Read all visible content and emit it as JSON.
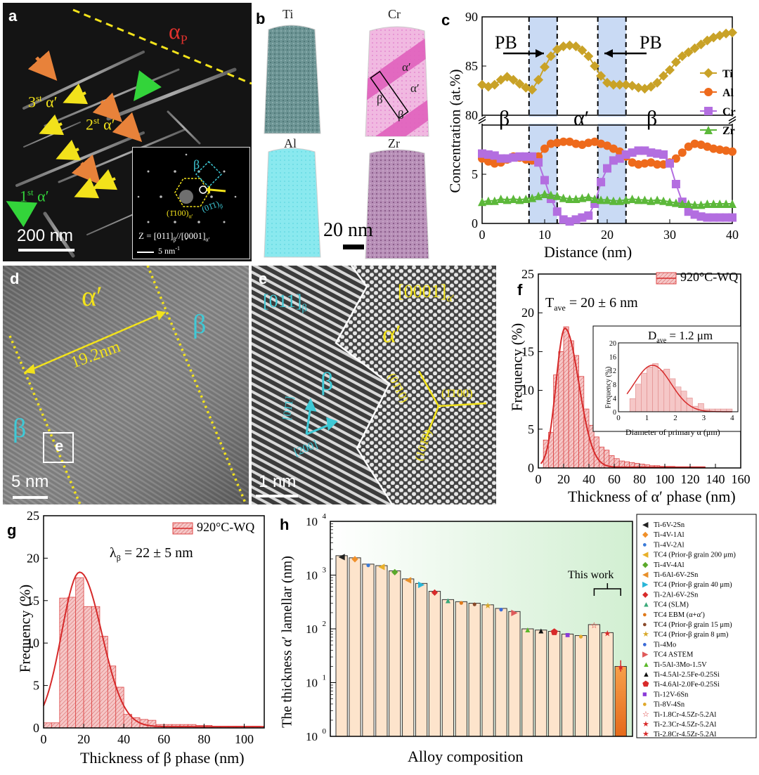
{
  "panel_a": {
    "letter": "a",
    "alpha_p": "α",
    "alpha_p_sub": "P",
    "third": "3",
    "third_sup": "st",
    "second": "2",
    "second_sup": "st",
    "first": "1",
    "first_sup": "st",
    "alpha_prime": "α′",
    "scale_bar": "200 nm",
    "inset": {
      "beta": "β",
      "hkl_beta": "(01̄1)",
      "hkl_beta_sub": "β",
      "hkl_alpha": "(1̄100)",
      "hkl_alpha_sub": "α′",
      "zone_axis": "Z = [011]",
      "zone_sub1": "β",
      "zone_mid": "//[0001]",
      "zone_sub2": "α′",
      "scale": "5 nm",
      "scale_sup": "-1"
    },
    "colors": {
      "yellow": "#f2e21b",
      "orange": "#e8823a",
      "green": "#33d43a",
      "red": "#e0322d",
      "cyan": "#3ec9d6"
    }
  },
  "panel_b": {
    "letter": "b",
    "elements": [
      "Ti",
      "Cr",
      "Al",
      "Zr"
    ],
    "alpha1": "α′",
    "alpha2": "α′",
    "beta1": "β",
    "beta2": "β",
    "scale_bar": "20 nm",
    "colors": {
      "Ti": "#5f8c8c",
      "Cr": "#e38ac9",
      "Al": "#7de3ea",
      "Zr": "#9d6d9d"
    }
  },
  "panel_c": {
    "letter": "c",
    "pb_left": "PB",
    "pb_right": "PB",
    "beta_left": "β",
    "alpha_mid": "α′",
    "beta_right": "β",
    "ylabel": "Concentration (at.%)",
    "xlabel": "Distance (nm)"
  },
  "chart_data": [
    {
      "type": "line",
      "panel": "c",
      "xlim": [
        0,
        40
      ],
      "ylim_upper": [
        80,
        90
      ],
      "ylim_lower": [
        0,
        10
      ],
      "x_ticks": [
        "0",
        "10",
        "20",
        "30",
        "40"
      ],
      "y_ticks_upper": [
        "80",
        "85",
        "90"
      ],
      "y_ticks_lower": [
        "0",
        "5"
      ],
      "shaded_x": [
        [
          7.5,
          12
        ],
        [
          18.5,
          23
        ]
      ],
      "dashed_x": [
        7.5,
        12,
        18.5,
        23
      ],
      "x": [
        0,
        1,
        2,
        3,
        4,
        5,
        6,
        7,
        8,
        9,
        10,
        11,
        12,
        13,
        14,
        15,
        16,
        17,
        18,
        19,
        20,
        21,
        22,
        23,
        24,
        25,
        26,
        27,
        28,
        29,
        30,
        31,
        32,
        33,
        34,
        35,
        36,
        37,
        38,
        39,
        40
      ],
      "series": [
        {
          "name": "Ti",
          "color": "#c9a227",
          "marker": "diamond",
          "values": [
            83.1,
            82.9,
            83.1,
            83.6,
            83.9,
            83.6,
            83.2,
            82.8,
            82.6,
            83.6,
            84.9,
            86.0,
            86.7,
            87.0,
            87.1,
            87.0,
            86.6,
            86.0,
            85.0,
            84.0,
            83.3,
            83.1,
            83.1,
            83.1,
            83.0,
            82.8,
            82.7,
            82.9,
            83.3,
            84.0,
            84.6,
            85.4,
            86.0,
            86.4,
            86.8,
            87.2,
            87.6,
            87.9,
            88.1,
            88.3,
            88.4
          ]
        },
        {
          "name": "Al",
          "color": "#ee6a1c",
          "marker": "circle",
          "values": [
            6.6,
            6.3,
            6.1,
            6.2,
            6.5,
            6.8,
            6.7,
            6.5,
            6.4,
            6.8,
            7.6,
            8.1,
            8.2,
            8.3,
            8.3,
            8.1,
            8.0,
            8.2,
            8.3,
            8.1,
            7.9,
            7.6,
            7.3,
            6.8,
            6.2,
            6.0,
            6.1,
            6.2,
            6.0,
            6.0,
            6.2,
            6.6,
            7.2,
            7.8,
            8.1,
            8.0,
            7.8,
            7.6,
            7.5,
            7.4,
            7.3
          ]
        },
        {
          "name": "Cr",
          "color": "#b36ee0",
          "marker": "square",
          "values": [
            7.1,
            7.0,
            6.9,
            6.6,
            6.6,
            6.7,
            6.8,
            6.8,
            6.8,
            6.2,
            4.4,
            2.5,
            1.2,
            0.4,
            0.2,
            0.4,
            0.6,
            0.8,
            2.0,
            4.2,
            5.6,
            6.4,
            6.6,
            7.0,
            7.2,
            7.4,
            7.4,
            7.2,
            7.1,
            7.0,
            6.1,
            4.0,
            2.2,
            1.2,
            0.9,
            0.7,
            0.6,
            0.6,
            0.6,
            0.6,
            0.6
          ]
        },
        {
          "name": "Zr",
          "color": "#5cb83a",
          "marker": "triangle",
          "values": [
            2.2,
            2.3,
            2.3,
            2.5,
            2.4,
            2.5,
            2.4,
            2.5,
            2.6,
            2.8,
            3.0,
            2.9,
            2.8,
            2.6,
            2.5,
            2.5,
            2.6,
            2.7,
            2.5,
            2.4,
            2.4,
            2.3,
            2.3,
            2.4,
            2.5,
            2.4,
            2.4,
            2.3,
            2.4,
            2.3,
            2.2,
            2.1,
            2.0,
            2.0,
            1.9,
            1.9,
            2.0,
            2.0,
            2.0,
            2.0,
            2.0
          ]
        }
      ],
      "legend": "right"
    },
    {
      "type": "bar",
      "panel": "f",
      "title": "920°C-WQ",
      "xlim": [
        0,
        160
      ],
      "ylim": [
        0,
        25
      ],
      "bin_width": 4,
      "x_ticks": [
        "0",
        "20",
        "40",
        "60",
        "80",
        "100",
        "120",
        "140",
        "160"
      ],
      "y_ticks": [
        "0",
        "5",
        "10",
        "15",
        "20",
        "25"
      ],
      "x_start": [
        4,
        8,
        12,
        16,
        20,
        24,
        28,
        32,
        36,
        40,
        44,
        48,
        52,
        56,
        60,
        64,
        68,
        72,
        76,
        80,
        84,
        88,
        92,
        96,
        100,
        104,
        108,
        112,
        116,
        120,
        124,
        128
      ],
      "values": [
        3.6,
        4.6,
        12.0,
        15.0,
        18.2,
        16.4,
        14.5,
        11.8,
        7.6,
        5.5,
        4.0,
        2.7,
        2.3,
        1.6,
        1.2,
        0.9,
        0.8,
        0.7,
        0.6,
        0.5,
        0.4,
        0.3,
        0.3,
        0.2,
        0.2,
        0.2,
        0.1,
        0.1,
        0.1,
        0.1,
        0.1,
        0.1
      ],
      "fit_peak": [
        21,
        17.9
      ]
    },
    {
      "type": "bar",
      "panel": "f-inset",
      "xlim": [
        0,
        4.2
      ],
      "ylim": [
        0,
        20
      ],
      "bin_width": 0.2,
      "x_ticks": [
        "0",
        "1",
        "2",
        "3",
        "4"
      ],
      "y_ticks": [
        "0",
        "4",
        "8",
        "12",
        "16",
        "20"
      ],
      "x_start": [
        0.4,
        0.6,
        0.8,
        1.0,
        1.2,
        1.4,
        1.6,
        1.8,
        2.0,
        2.2,
        2.4,
        2.6,
        2.8,
        3.0,
        3.2,
        3.4,
        3.6,
        3.8
      ],
      "values": [
        3.8,
        8.0,
        11.2,
        13.0,
        14.0,
        12.0,
        12.4,
        9.6,
        7.2,
        6.0,
        4.0,
        1.6,
        2.4,
        0.8,
        0.8,
        0.8,
        0.8,
        0.8
      ],
      "fit_peak": [
        1.2,
        13.5
      ]
    },
    {
      "type": "bar",
      "panel": "g",
      "title": "920°C-WQ",
      "xlim": [
        0,
        110
      ],
      "ylim": [
        0,
        25
      ],
      "bin_width": 4,
      "x_ticks": [
        "0",
        "20",
        "40",
        "60",
        "80",
        "100"
      ],
      "y_ticks": [
        "0",
        "5",
        "10",
        "15",
        "20",
        "25"
      ],
      "x_start": [
        0,
        4,
        8,
        12,
        16,
        20,
        24,
        28,
        32,
        36,
        40,
        44,
        48,
        52,
        56,
        60,
        64,
        68,
        72,
        76,
        80,
        84,
        88,
        92,
        96,
        100,
        104
      ],
      "values": [
        0.6,
        0.6,
        15.3,
        15.4,
        17.7,
        14.3,
        14.3,
        10.8,
        7.3,
        4.8,
        1.6,
        1.2,
        1.0,
        0.9,
        0.4,
        0.4,
        0.4,
        0.4,
        0.4,
        0.3,
        0.3,
        0.2,
        0.2,
        0.2,
        0.2,
        0.2,
        0.2
      ],
      "fit_peak": [
        18,
        18.2
      ]
    },
    {
      "type": "bar",
      "panel": "h",
      "log_scale": true,
      "ylim": [
        1,
        10000
      ],
      "y_ticks": [
        "10",
        "10",
        "10",
        "10",
        "10"
      ],
      "y_tick_exps": [
        "0",
        "1",
        "2",
        "3",
        "4"
      ],
      "xlabel": "Alloy composition",
      "ylabel": "The thickness α′ lamellar (nm)",
      "categories": [
        "Ti-6V-2Sn",
        "Ti-4V-1Al",
        "Ti-4V-2Al",
        "TC4 (Prior-β grain 200 μm)",
        "Ti-4V-4Al",
        "Ti-6Al-6V-2Sn",
        "TC4 (Prior-β grain 40 μm)",
        "Ti-2Al-6V-2Sn",
        "TC4 (SLM)",
        "TC4 EBM (α+α′)",
        "TC4 (Prior-β grain 15 μm)",
        "TC4 (Prior-β grain 8 μm)",
        "Ti-4Mo",
        "TC4 ASTEM",
        "Ti-5Al-3Mo-1.5V",
        "Ti-4.5Al-2.5Fe-0.25Si",
        "Ti-4.6Al-2.0Fe-0.25Si",
        "Ti-12V-6Sn",
        "Ti-8V-4Sn",
        "Ti-1.8Cr-4.5Zr-5.2Al",
        "Ti-2.3Cr-4.5Zr-5.2Al",
        "Ti-2.8Cr-4.5Zr-5.2Al"
      ],
      "values": [
        2300,
        2100,
        1600,
        1500,
        1200,
        850,
        700,
        500,
        350,
        320,
        300,
        280,
        240,
        210,
        100,
        95,
        90,
        80,
        75,
        120,
        85,
        20
      ],
      "markers": [
        "◀",
        "◆",
        "●",
        "◀",
        "◆",
        "◀",
        "▶",
        "◆",
        "▲",
        "●",
        "●",
        "★",
        "●",
        "▶",
        "▲",
        "▲",
        "⬟",
        "■",
        "●",
        "☆",
        "★",
        "★"
      ],
      "marker_colors": [
        "#222222",
        "#f0902a",
        "#3a7ad8",
        "#e8b02a",
        "#5aa92a",
        "#e8902a",
        "#2ab6d8",
        "#d82a2a",
        "#3aa97a",
        "#e07a1a",
        "#8a4a2a",
        "#d8a82a",
        "#3a6ad8",
        "#e05a5a",
        "#5ab82a",
        "#111111",
        "#d82a2a",
        "#8a3ad8",
        "#e0a82a",
        "#d82a2a",
        "#d82a2a",
        "#d82a2a"
      ],
      "annotation": "This work",
      "legend": "right"
    }
  ],
  "panel_d": {
    "letter": "d",
    "alpha": "α′",
    "beta_left": "β",
    "beta_right": "β",
    "thickness": "19.2nm",
    "box": "e",
    "scale_bar": "5 nm"
  },
  "panel_e": {
    "letter": "e",
    "zone_beta": "[011]",
    "zone_beta_sub": "β",
    "zone_alpha": "[0001]",
    "zone_alpha_sub": "α′",
    "alpha": "α′",
    "beta": "β",
    "dir1": "[01̄1]",
    "dir2": "[200]",
    "plane1": "(01̄10)",
    "plane2": "(1̄100)",
    "plane3": "(101̄0)",
    "scale_bar": "1 nm"
  },
  "panel_f": {
    "letter": "f",
    "t_ave": "T",
    "t_ave_sub": "ave",
    "t_ave_val": " = 20 ± 6 nm",
    "ylabel": "Frequency (%)",
    "xlabel": "Thickness of α′ phase (nm)",
    "inset_d_ave": "D",
    "inset_d_ave_sub": "ave",
    "inset_d_ave_val": " = 1.2 μm",
    "inset_ylabel": "Frequency (%)",
    "inset_xlabel": "Diameter of primary α (μm)"
  },
  "panel_g": {
    "letter": "g",
    "lambda": "λ",
    "lambda_sub": "β",
    "lambda_val": " = 22 ± 5 nm",
    "ylabel": "Frequency (%)",
    "xlabel": "Thickness of β phase (nm)"
  },
  "panel_h": {
    "letter": "h"
  }
}
